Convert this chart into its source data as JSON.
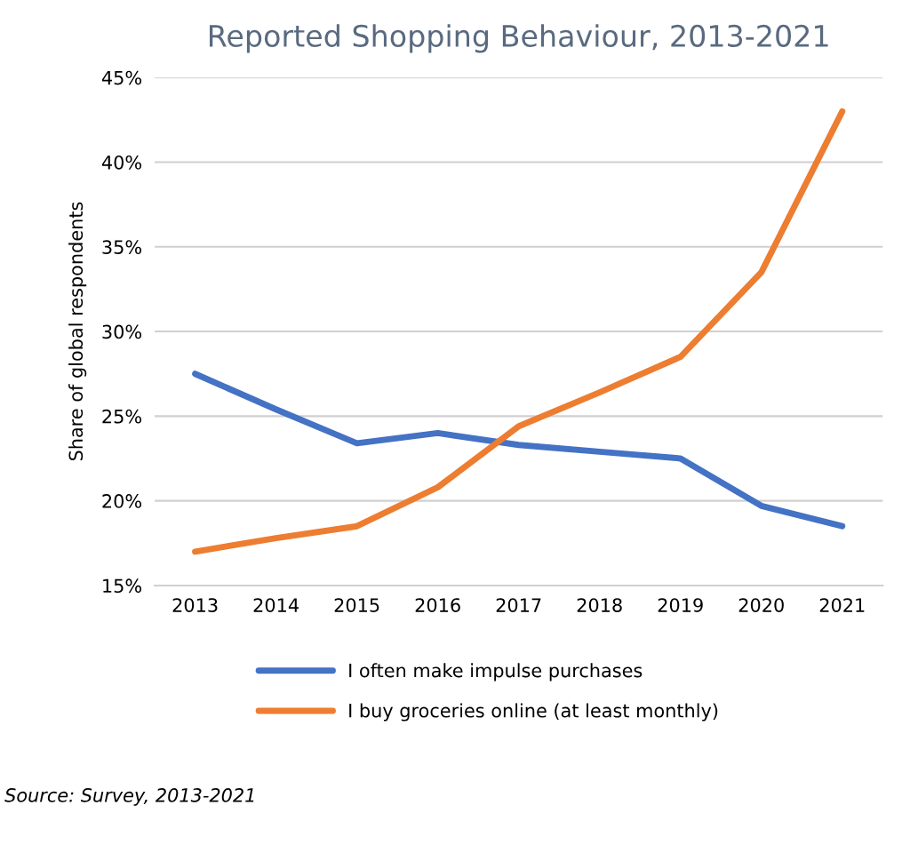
{
  "chart_data": {
    "type": "line",
    "title": "Reported Shopping Behaviour, 2013-2021",
    "ylabel": "Share of global respondents",
    "categories": [
      "2013",
      "2014",
      "2015",
      "2016",
      "2017",
      "2018",
      "2019",
      "2020",
      "2021"
    ],
    "series": [
      {
        "name": "I often make impulse purchases",
        "color": "#4472c4",
        "values": [
          27.5,
          25.4,
          23.4,
          24.0,
          23.3,
          22.9,
          22.5,
          19.7,
          18.5
        ]
      },
      {
        "name": "I buy groceries online (at least monthly)",
        "color": "#ed7d31",
        "values": [
          17.0,
          17.8,
          18.5,
          20.8,
          24.4,
          26.4,
          28.5,
          33.5,
          43.0
        ]
      }
    ],
    "ylim": [
      15,
      45
    ],
    "yticks": [
      {
        "value": 15,
        "label": "15%"
      },
      {
        "value": 20,
        "label": "20%"
      },
      {
        "value": 25,
        "label": "25%"
      },
      {
        "value": 30,
        "label": "30%"
      },
      {
        "value": 35,
        "label": "35%"
      },
      {
        "value": 40,
        "label": "40%"
      },
      {
        "value": 45,
        "label": "45%"
      }
    ],
    "grid": "y",
    "legend": "bottom",
    "marker": "none",
    "line_style": "solid",
    "annotations": [
      "Source: Survey, 2013-2021"
    ]
  }
}
